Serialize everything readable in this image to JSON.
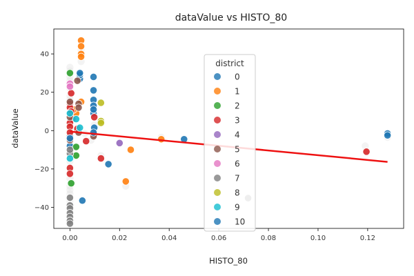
{
  "chart_data": {
    "type": "scatter",
    "title": "dataValue vs HISTO_80",
    "xlabel": "HISTO_80",
    "ylabel": "dataValue",
    "xlim": [
      -0.0065,
      0.1345
    ],
    "ylim": [
      -51,
      53
    ],
    "xticks": [
      0.0,
      0.02,
      0.04,
      0.06,
      0.08,
      0.1,
      0.12
    ],
    "xtick_labels": [
      "0.00",
      "0.02",
      "0.04",
      "0.06",
      "0.08",
      "0.10",
      "0.12"
    ],
    "yticks": [
      -40,
      -20,
      0,
      20,
      40
    ],
    "ytick_labels": [
      "−40",
      "−20",
      "0",
      "20",
      "40"
    ],
    "grid": false,
    "legend": {
      "title": "district",
      "placement": "center-right",
      "entries": [
        {
          "label": "0",
          "color": "#1f77b4"
        },
        {
          "label": "1",
          "color": "#ff7f0e"
        },
        {
          "label": "2",
          "color": "#2ca02c"
        },
        {
          "label": "3",
          "color": "#d62728"
        },
        {
          "label": "4",
          "color": "#9467bd"
        },
        {
          "label": "5",
          "color": "#8c564b"
        },
        {
          "label": "6",
          "color": "#e377c2"
        },
        {
          "label": "7",
          "color": "#7f7f7f"
        },
        {
          "label": "8",
          "color": "#bcbd22"
        },
        {
          "label": "9",
          "color": "#17becf"
        },
        {
          "label": "10",
          "color": "#1f77b4"
        }
      ]
    },
    "trend_line": {
      "color": "#ee1111",
      "x": [
        0.0,
        0.128
      ],
      "y": [
        -0.5,
        -16.3
      ]
    },
    "series": [
      {
        "name": "0",
        "color": "#1f77b4",
        "points": [
          [
            0.0,
            -3
          ],
          [
            0.0,
            -8
          ],
          [
            0.004,
            27
          ],
          [
            0.004,
            29
          ],
          [
            0.004,
            30
          ],
          [
            0.0095,
            28
          ],
          [
            0.0095,
            21
          ],
          [
            0.0095,
            16
          ],
          [
            0.0095,
            13
          ],
          [
            0.0095,
            9
          ],
          [
            0.0098,
            1.5
          ],
          [
            0.0155,
            -17.5
          ],
          [
            0.005,
            -36.5
          ],
          [
            0.046,
            -4.5
          ],
          [
            0.128,
            -1.5
          ],
          [
            0.128,
            -2.5
          ],
          [
            0.0,
            9
          ]
        ]
      },
      {
        "name": "1",
        "color": "#ff7f0e",
        "points": [
          [
            0.0045,
            47
          ],
          [
            0.0045,
            44
          ],
          [
            0.0045,
            40
          ],
          [
            0.0045,
            38.5
          ],
          [
            0.0045,
            15
          ],
          [
            0.0025,
            9
          ],
          [
            0.0245,
            -10
          ],
          [
            0.0225,
            -26.5
          ],
          [
            0.0368,
            -4.5
          ],
          [
            0.0015,
            11
          ]
        ]
      },
      {
        "name": "2",
        "color": "#2ca02c",
        "points": [
          [
            0.0,
            30
          ],
          [
            0.0025,
            -8.5
          ],
          [
            0.0025,
            -13
          ],
          [
            0.0005,
            -27.5
          ]
        ]
      },
      {
        "name": "3",
        "color": "#d62728",
        "points": [
          [
            0.0005,
            19.5
          ],
          [
            0.0,
            14
          ],
          [
            0.0,
            12
          ],
          [
            0.0005,
            10
          ],
          [
            0.001,
            6
          ],
          [
            0.0,
            4
          ],
          [
            0.0,
            2
          ],
          [
            0.0,
            -1
          ],
          [
            0.0,
            -19.5
          ],
          [
            0.0,
            -22.5
          ],
          [
            0.0065,
            -5.5
          ],
          [
            0.0125,
            -14.5
          ],
          [
            0.0098,
            7
          ],
          [
            0.0098,
            -2
          ],
          [
            0.1195,
            -11
          ],
          [
            0.003,
            1
          ]
        ]
      },
      {
        "name": "4",
        "color": "#9467bd",
        "points": [
          [
            0.02,
            -6.5
          ]
        ]
      },
      {
        "name": "5",
        "color": "#8c564b",
        "points": [
          [
            0.003,
            26
          ],
          [
            0.0035,
            14
          ],
          [
            0.0035,
            12
          ],
          [
            0.0,
            15
          ],
          [
            0.0,
            7
          ],
          [
            0.0,
            -5
          ],
          [
            0.0035,
            -1
          ],
          [
            0.0095,
            -3
          ]
        ]
      },
      {
        "name": "6",
        "color": "#e377c2",
        "points": [
          [
            0.0,
            24.5
          ],
          [
            0.0,
            23
          ]
        ]
      },
      {
        "name": "7",
        "color": "#7f7f7f",
        "points": [
          [
            0.0,
            -35
          ],
          [
            0.0,
            -39
          ],
          [
            0.0,
            -40.5
          ],
          [
            0.0,
            -43
          ],
          [
            0.0,
            -45
          ],
          [
            0.0,
            -47
          ],
          [
            0.0,
            -48.5
          ],
          [
            0.0718,
            -35.2
          ],
          [
            0.0,
            -12
          ],
          [
            0.0,
            -10
          ]
        ]
      },
      {
        "name": "8",
        "color": "#bcbd22",
        "points": [
          [
            0.0125,
            14.5
          ],
          [
            0.0125,
            5
          ],
          [
            0.0125,
            4
          ]
        ]
      },
      {
        "name": "9",
        "color": "#17becf",
        "points": [
          [
            0.0,
            9
          ],
          [
            0.0025,
            6
          ],
          [
            0.004,
            1.5
          ],
          [
            0.0,
            -14.5
          ]
        ]
      },
      {
        "name": "10",
        "color": "#1f77b4",
        "points": [
          [
            0.0,
            -4
          ],
          [
            0.0095,
            11
          ],
          [
            0.0095,
            -1
          ]
        ]
      }
    ],
    "faded_points": [
      [
        0.0,
        33
      ],
      [
        0.0,
        31
      ],
      [
        0.0,
        28
      ],
      [
        0.0,
        26
      ],
      [
        0.0,
        22
      ],
      [
        0.0,
        18
      ],
      [
        0.0,
        16
      ],
      [
        0.0,
        0
      ],
      [
        0.0,
        -6
      ],
      [
        0.0,
        -16
      ],
      [
        0.0,
        -25
      ],
      [
        0.0,
        -29
      ],
      [
        0.0,
        -31
      ],
      [
        0.0,
        -33
      ],
      [
        0.0,
        -37
      ],
      [
        0.0,
        -42
      ],
      [
        0.0,
        -46
      ],
      [
        0.0015,
        -9
      ],
      [
        0.0045,
        42
      ],
      [
        0.0045,
        36
      ],
      [
        0.0085,
        -5
      ],
      [
        0.0098,
        3
      ],
      [
        0.0125,
        -13
      ],
      [
        0.0225,
        -29
      ],
      [
        0.0368,
        -3.5
      ],
      [
        0.119,
        -8
      ],
      [
        0.128,
        -3.5
      ],
      [
        0.0,
        4.5
      ],
      [
        0.006,
        -1.5
      ]
    ]
  }
}
